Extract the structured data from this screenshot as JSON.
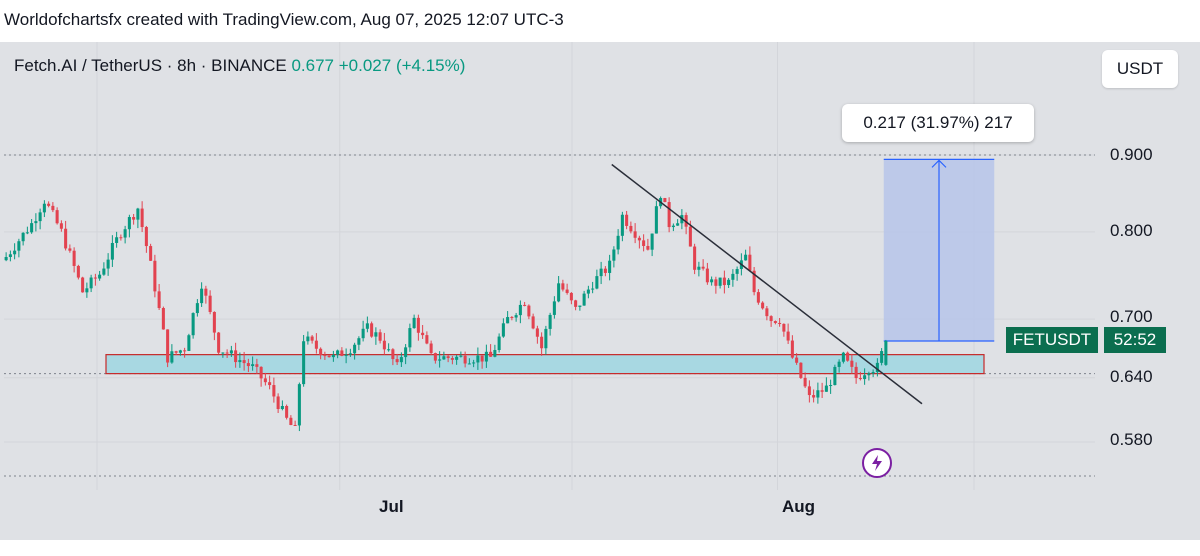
{
  "caption": "Worldofchartsfx created with TradingView.com, Aug 07, 2025 12:07 UTC-3",
  "legend": {
    "symbol": "Fetch.AI / TetherUS · 8h · BINANCE",
    "last": "0.677",
    "change": "+0.027 (+4.15%)"
  },
  "currency_button": "USDT",
  "measure_label": "0.217 (31.97%) 217",
  "ticker_tag": "FETUSDT",
  "countdown_tag": "52:52",
  "price_axis": [
    "0.900",
    "0.800",
    "0.700",
    "0.640",
    "0.580"
  ],
  "time_axis": [
    "Jul",
    "Aug"
  ],
  "colors": {
    "up": "#089981",
    "down": "#e2424f",
    "zone_fill": "#a8d8e2",
    "zone_border": "#c62828",
    "measure_fill": "#b7c4ea",
    "measure_line": "#2962ff",
    "trendline": "#2a2e39",
    "tag": "#0b6e4f"
  },
  "chart_data": {
    "type": "candlestick",
    "symbol": "FETUSDT",
    "interval": "8h",
    "exchange": "BINANCE",
    "y_scale": "log",
    "y_range": [
      0.565,
      0.95
    ],
    "y_ticks": [
      0.9,
      0.8,
      0.7,
      0.64,
      0.58
    ],
    "x_labels": [
      {
        "label": "Jul",
        "bar": 79
      },
      {
        "label": "Aug",
        "bar": 182
      }
    ],
    "close_anchors": [
      [
        0,
        0.77
      ],
      [
        6,
        0.81
      ],
      [
        9,
        0.84
      ],
      [
        13,
        0.8
      ],
      [
        18,
        0.73
      ],
      [
        22,
        0.75
      ],
      [
        27,
        0.8
      ],
      [
        31,
        0.83
      ],
      [
        34,
        0.76
      ],
      [
        38,
        0.66
      ],
      [
        42,
        0.67
      ],
      [
        46,
        0.74
      ],
      [
        50,
        0.67
      ],
      [
        54,
        0.66
      ],
      [
        58,
        0.65
      ],
      [
        62,
        0.63
      ],
      [
        66,
        0.6
      ],
      [
        68,
        0.59
      ],
      [
        70,
        0.68
      ],
      [
        73,
        0.67
      ],
      [
        77,
        0.66
      ],
      [
        81,
        0.67
      ],
      [
        85,
        0.69
      ],
      [
        88,
        0.68
      ],
      [
        92,
        0.65
      ],
      [
        96,
        0.7
      ],
      [
        100,
        0.66
      ],
      [
        105,
        0.66
      ],
      [
        109,
        0.66
      ],
      [
        114,
        0.66
      ],
      [
        118,
        0.7
      ],
      [
        122,
        0.72
      ],
      [
        126,
        0.67
      ],
      [
        130,
        0.74
      ],
      [
        134,
        0.71
      ],
      [
        138,
        0.74
      ],
      [
        142,
        0.76
      ],
      [
        145,
        0.82
      ],
      [
        148,
        0.8
      ],
      [
        151,
        0.78
      ],
      [
        154,
        0.85
      ],
      [
        156,
        0.81
      ],
      [
        159,
        0.82
      ],
      [
        162,
        0.76
      ],
      [
        166,
        0.74
      ],
      [
        170,
        0.74
      ],
      [
        174,
        0.77
      ],
      [
        176,
        0.73
      ],
      [
        180,
        0.7
      ],
      [
        182,
        0.7
      ],
      [
        185,
        0.66
      ],
      [
        189,
        0.62
      ],
      [
        193,
        0.63
      ],
      [
        197,
        0.66
      ],
      [
        200,
        0.64
      ],
      [
        203,
        0.65
      ],
      [
        205,
        0.65
      ],
      [
        207,
        0.677
      ]
    ],
    "horizontal_levels": [
      0.9,
      0.644
    ],
    "support_zone": {
      "from": 0.644,
      "to": 0.663,
      "start_bar": 24
    },
    "trendline": {
      "start": {
        "bar": 143,
        "price": 0.887
      },
      "end": {
        "bar": 216,
        "price": 0.615
      }
    },
    "measure": {
      "from": 0.677,
      "to": 0.894,
      "start_bar": 207,
      "end_bar": 233,
      "text": "0.217 (31.97%) 217"
    },
    "last_price": 0.677,
    "change": 0.027,
    "change_pct": 4.15
  }
}
